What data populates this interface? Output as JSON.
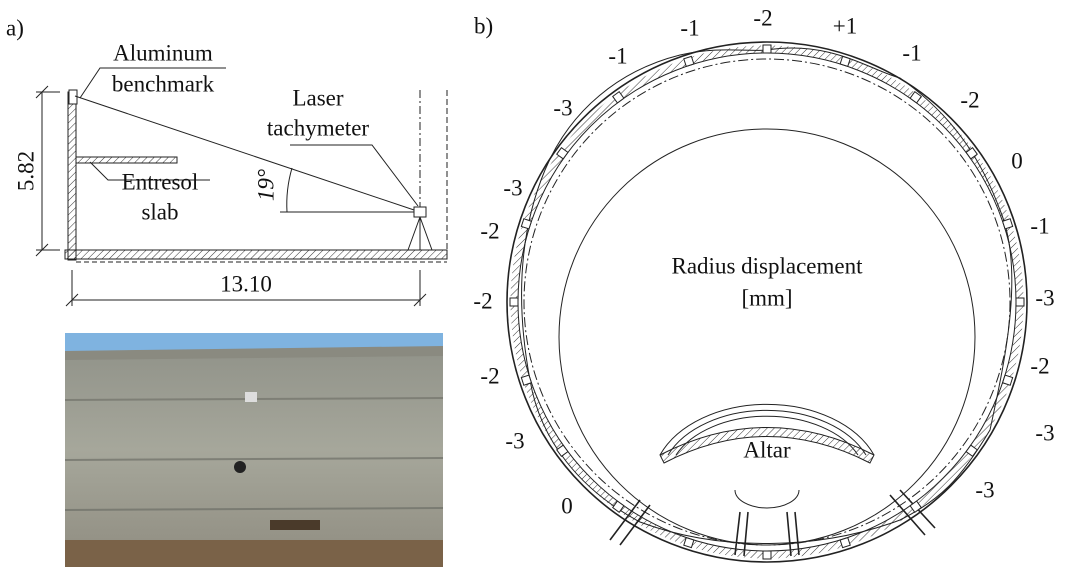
{
  "panel_a": {
    "label": "a)",
    "benchmark": [
      "Aluminum",
      "benchmark"
    ],
    "tachymeter": [
      "Laser",
      "tachymeter"
    ],
    "slab": [
      "Entresol",
      "slab"
    ],
    "angle": "19°",
    "height": "5.82",
    "length": "13.10"
  },
  "panel_b": {
    "label": "b)",
    "ring_labels": [
      "-2",
      "+1",
      "-1",
      "-1",
      "-1",
      "-3",
      "-2",
      "-3",
      "0",
      "-2",
      "-1",
      "-2",
      "-3",
      "-2",
      "-2",
      "-3",
      "-3",
      "0",
      "-3"
    ],
    "center_title": [
      "Radius displacement",
      "[mm]"
    ],
    "altar": "Altar"
  }
}
